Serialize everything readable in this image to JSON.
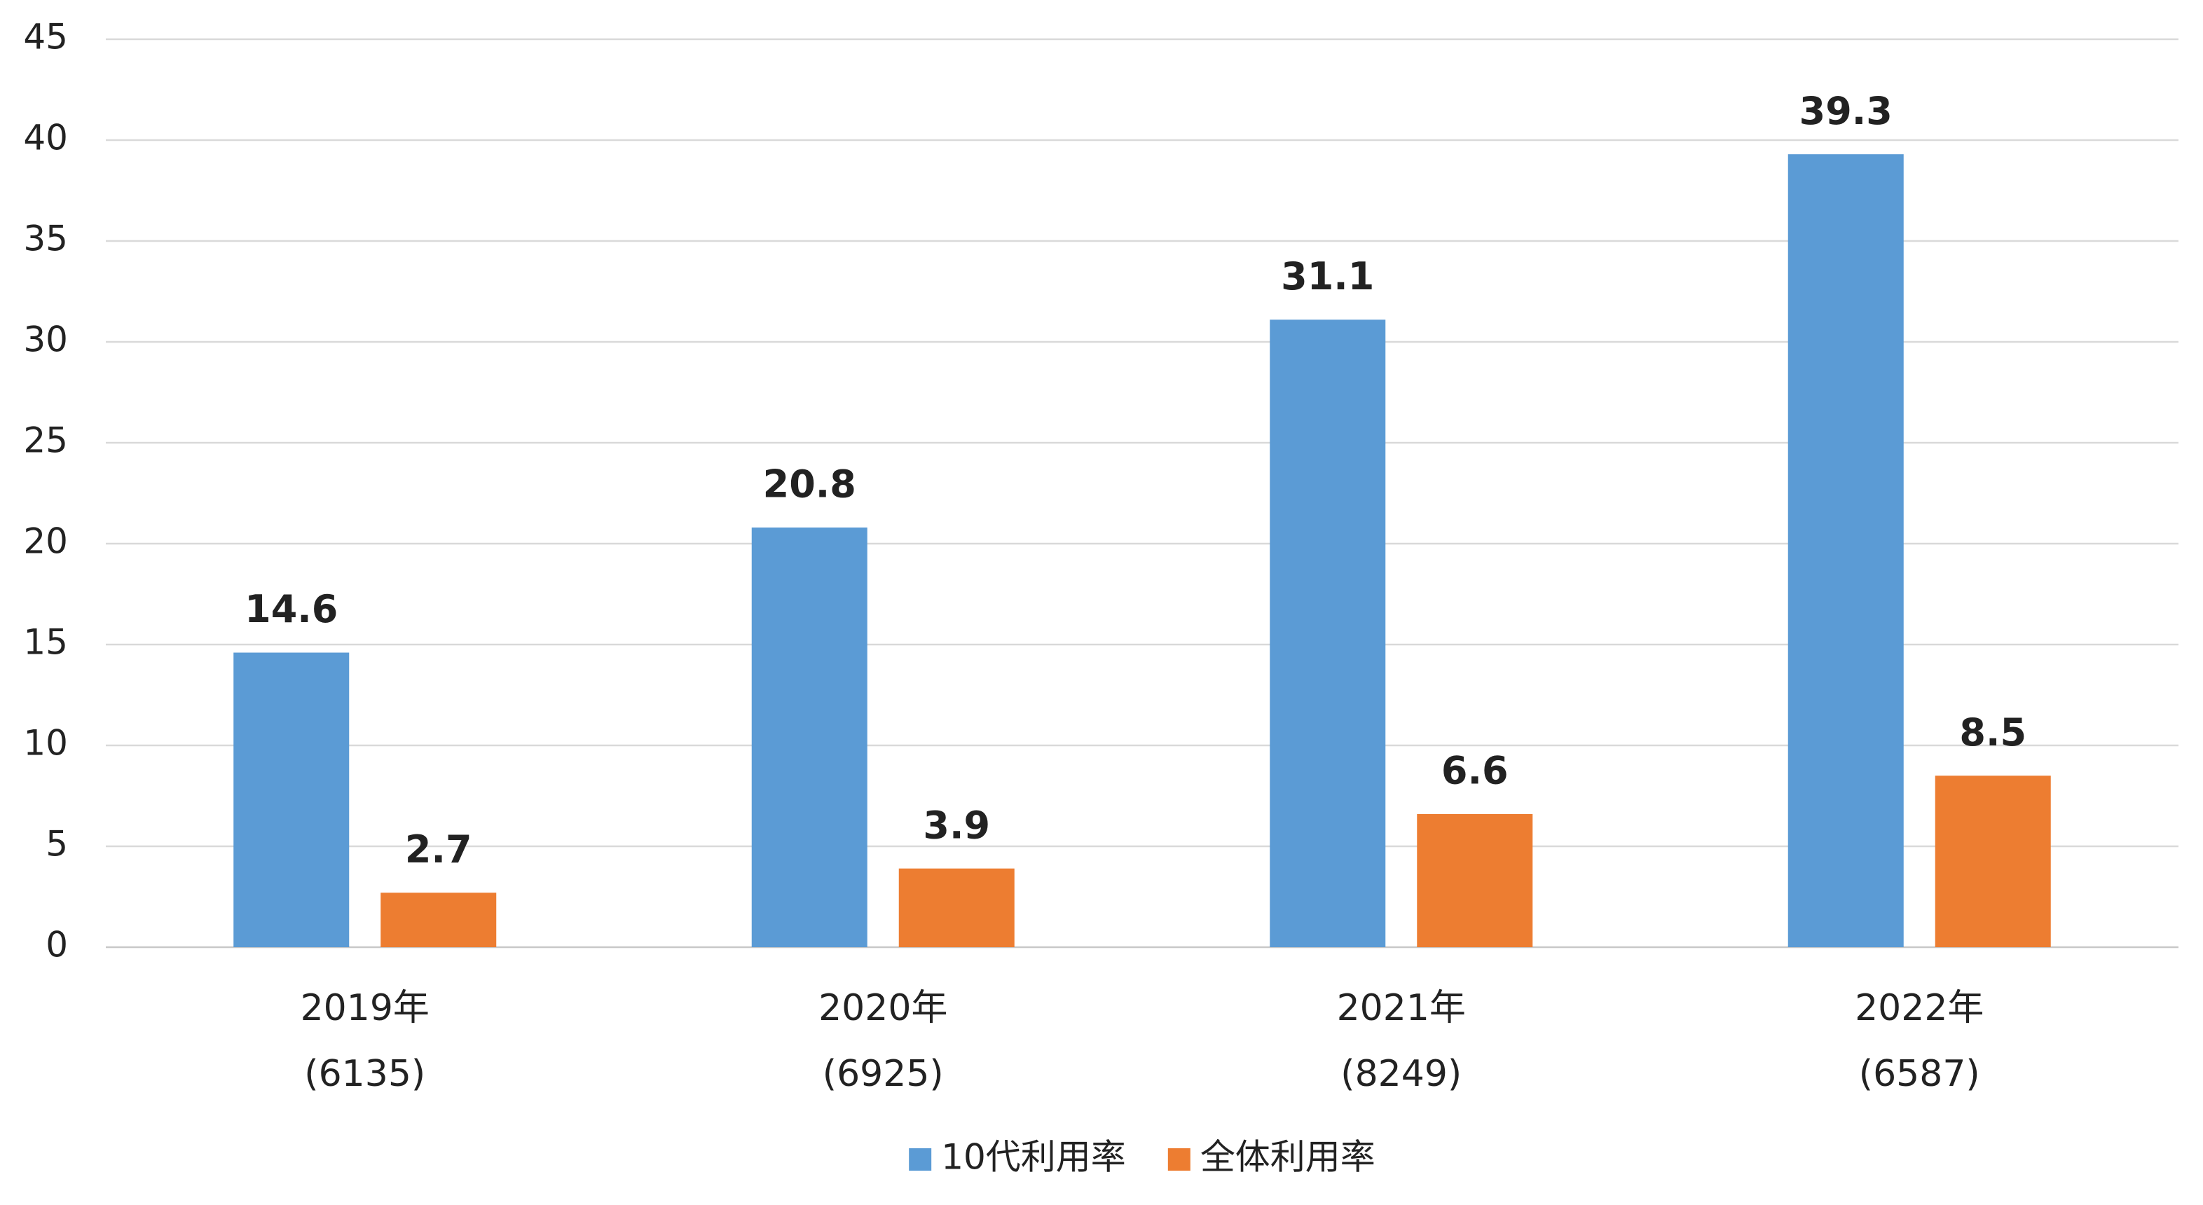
{
  "chart_data": {
    "type": "bar",
    "categories": [
      "2019年",
      "2020年",
      "2021年",
      "2022年"
    ],
    "category_notes": [
      "(6135)",
      "(6925)",
      "(8249)",
      "(6587)"
    ],
    "series": [
      {
        "name": "10代利用率",
        "color": "#5b9bd5",
        "values": [
          14.6,
          20.8,
          31.1,
          39.3
        ]
      },
      {
        "name": "全体利用率",
        "color": "#ed7d31",
        "values": [
          2.7,
          3.9,
          6.6,
          8.5
        ]
      }
    ],
    "ylim": [
      0,
      45
    ],
    "yticks": [
      0,
      5,
      10,
      15,
      20,
      25,
      30,
      35,
      40,
      45
    ],
    "grid": true,
    "legend": "bottom"
  }
}
